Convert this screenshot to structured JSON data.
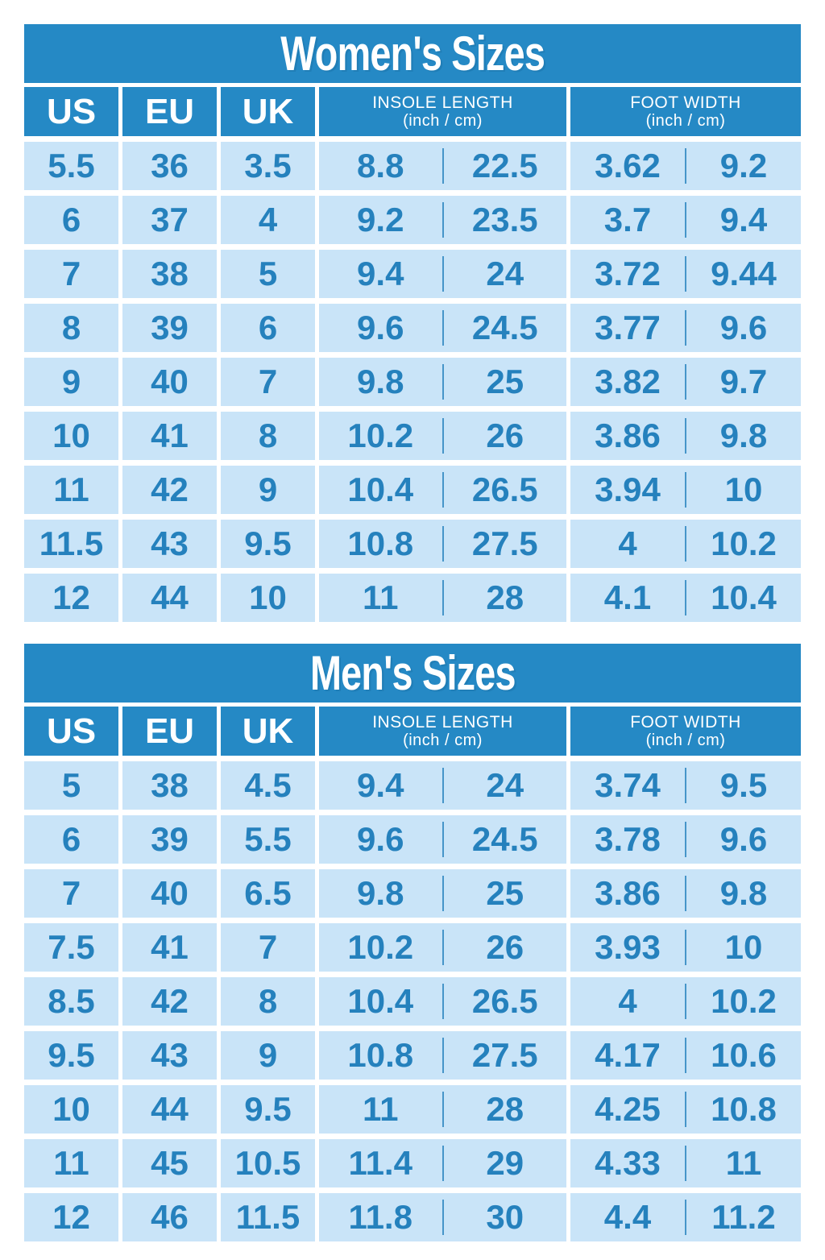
{
  "colors": {
    "header_blue": "#2589C5",
    "row_light_blue": "#C9E4F8",
    "value_blue": "#2581BD",
    "title_text": "#FFFFFF",
    "page_background": "#FFFFFF"
  },
  "chart_data": [
    {
      "type": "table",
      "title": "Women's Sizes",
      "column_headers": {
        "us": "US",
        "eu": "EU",
        "uk": "UK",
        "insole": {
          "line1": "INSOLE LENGTH",
          "line2": "(inch / cm)"
        },
        "foot": {
          "line1": "FOOT WIDTH",
          "line2": "(inch / cm)"
        }
      },
      "rows": [
        {
          "us": "5.5",
          "eu": "36",
          "uk": "3.5",
          "insole_inch": "8.8",
          "insole_cm": "22.5",
          "width_inch": "3.62",
          "width_cm": "9.2"
        },
        {
          "us": "6",
          "eu": "37",
          "uk": "4",
          "insole_inch": "9.2",
          "insole_cm": "23.5",
          "width_inch": "3.7",
          "width_cm": "9.4"
        },
        {
          "us": "7",
          "eu": "38",
          "uk": "5",
          "insole_inch": "9.4",
          "insole_cm": "24",
          "width_inch": "3.72",
          "width_cm": "9.44"
        },
        {
          "us": "8",
          "eu": "39",
          "uk": "6",
          "insole_inch": "9.6",
          "insole_cm": "24.5",
          "width_inch": "3.77",
          "width_cm": "9.6"
        },
        {
          "us": "9",
          "eu": "40",
          "uk": "7",
          "insole_inch": "9.8",
          "insole_cm": "25",
          "width_inch": "3.82",
          "width_cm": "9.7"
        },
        {
          "us": "10",
          "eu": "41",
          "uk": "8",
          "insole_inch": "10.2",
          "insole_cm": "26",
          "width_inch": "3.86",
          "width_cm": "9.8"
        },
        {
          "us": "11",
          "eu": "42",
          "uk": "9",
          "insole_inch": "10.4",
          "insole_cm": "26.5",
          "width_inch": "3.94",
          "width_cm": "10"
        },
        {
          "us": "11.5",
          "eu": "43",
          "uk": "9.5",
          "insole_inch": "10.8",
          "insole_cm": "27.5",
          "width_inch": "4",
          "width_cm": "10.2"
        },
        {
          "us": "12",
          "eu": "44",
          "uk": "10",
          "insole_inch": "11",
          "insole_cm": "28",
          "width_inch": "4.1",
          "width_cm": "10.4"
        }
      ]
    },
    {
      "type": "table",
      "title": "Men's Sizes",
      "column_headers": {
        "us": "US",
        "eu": "EU",
        "uk": "UK",
        "insole": {
          "line1": "INSOLE LENGTH",
          "line2": "(inch / cm)"
        },
        "foot": {
          "line1": "FOOT WIDTH",
          "line2": "(inch / cm)"
        }
      },
      "rows": [
        {
          "us": "5",
          "eu": "38",
          "uk": "4.5",
          "insole_inch": "9.4",
          "insole_cm": "24",
          "width_inch": "3.74",
          "width_cm": "9.5"
        },
        {
          "us": "6",
          "eu": "39",
          "uk": "5.5",
          "insole_inch": "9.6",
          "insole_cm": "24.5",
          "width_inch": "3.78",
          "width_cm": "9.6"
        },
        {
          "us": "7",
          "eu": "40",
          "uk": "6.5",
          "insole_inch": "9.8",
          "insole_cm": "25",
          "width_inch": "3.86",
          "width_cm": "9.8"
        },
        {
          "us": "7.5",
          "eu": "41",
          "uk": "7",
          "insole_inch": "10.2",
          "insole_cm": "26",
          "width_inch": "3.93",
          "width_cm": "10"
        },
        {
          "us": "8.5",
          "eu": "42",
          "uk": "8",
          "insole_inch": "10.4",
          "insole_cm": "26.5",
          "width_inch": "4",
          "width_cm": "10.2"
        },
        {
          "us": "9.5",
          "eu": "43",
          "uk": "9",
          "insole_inch": "10.8",
          "insole_cm": "27.5",
          "width_inch": "4.17",
          "width_cm": "10.6"
        },
        {
          "us": "10",
          "eu": "44",
          "uk": "9.5",
          "insole_inch": "11",
          "insole_cm": "28",
          "width_inch": "4.25",
          "width_cm": "10.8"
        },
        {
          "us": "11",
          "eu": "45",
          "uk": "10.5",
          "insole_inch": "11.4",
          "insole_cm": "29",
          "width_inch": "4.33",
          "width_cm": "11"
        },
        {
          "us": "12",
          "eu": "46",
          "uk": "11.5",
          "insole_inch": "11.8",
          "insole_cm": "30",
          "width_inch": "4.4",
          "width_cm": "11.2"
        }
      ]
    }
  ]
}
